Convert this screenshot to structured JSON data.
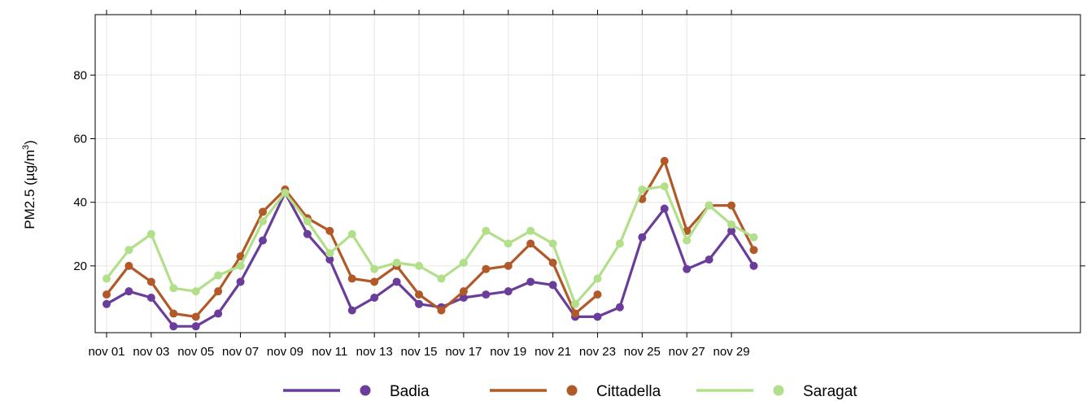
{
  "chart_data": {
    "type": "line",
    "title": "",
    "xlabel": "",
    "ylabel": "PM2.5 (µg/m³)",
    "ylabel_parts": {
      "pre": "PM2.5 (",
      "mu": "µ",
      "unit": "g/m",
      "sup": "3",
      "post": ")"
    },
    "x": [
      "nov 01",
      "nov 02",
      "nov 03",
      "nov 04",
      "nov 05",
      "nov 06",
      "nov 07",
      "nov 08",
      "nov 09",
      "nov 10",
      "nov 11",
      "nov 12",
      "nov 13",
      "nov 14",
      "nov 15",
      "nov 16",
      "nov 17",
      "nov 18",
      "nov 19",
      "nov 20",
      "nov 21",
      "nov 22",
      "nov 23",
      "nov 24",
      "nov 25",
      "nov 26",
      "nov 27",
      "nov 28",
      "nov 29",
      "nov 30"
    ],
    "xticks": [
      "nov 01",
      "nov 03",
      "nov 05",
      "nov 07",
      "nov 09",
      "nov 11",
      "nov 13",
      "nov 15",
      "nov 17",
      "nov 19",
      "nov 21",
      "nov 23",
      "nov 25",
      "nov 27",
      "nov 29"
    ],
    "yticks": [
      20,
      40,
      60,
      80
    ],
    "ylim": [
      -1,
      99
    ],
    "grid": true,
    "legend_position": "bottom",
    "series": [
      {
        "name": "Badia",
        "color": "#6a3d9a",
        "values": [
          8,
          12,
          10,
          1,
          1,
          5,
          15,
          28,
          43,
          30,
          22,
          6,
          10,
          15,
          8,
          7,
          10,
          11,
          12,
          15,
          14,
          4,
          4,
          7,
          29,
          38,
          19,
          22,
          31,
          20
        ]
      },
      {
        "name": "Cittadella",
        "color": "#b15928",
        "values": [
          11,
          20,
          15,
          5,
          4,
          12,
          23,
          37,
          44,
          35,
          31,
          16,
          15,
          20,
          11,
          6,
          12,
          19,
          20,
          27,
          21,
          5,
          11,
          null,
          41,
          53,
          31,
          39,
          39,
          25
        ]
      },
      {
        "name": "Saragat",
        "color": "#b2df8a",
        "values": [
          16,
          25,
          30,
          13,
          12,
          17,
          20,
          34,
          43,
          34,
          24,
          30,
          19,
          21,
          20,
          16,
          21,
          31,
          27,
          31,
          27,
          8,
          16,
          27,
          44,
          45,
          28,
          39,
          33,
          29
        ]
      }
    ]
  }
}
